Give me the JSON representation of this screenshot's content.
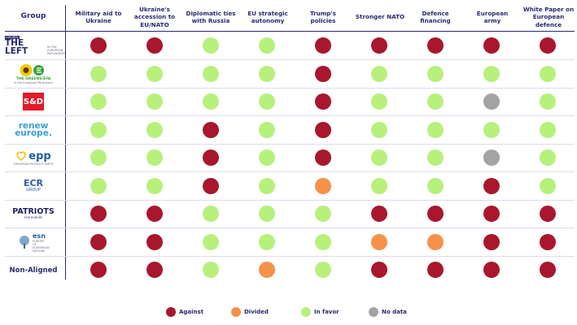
{
  "header": {
    "group_label": "Group",
    "columns": [
      "Military aid to Ukraine",
      "Ukraine's accession to EU/NATO",
      "Diplomatic ties with Russia",
      "EU strategic autonomy",
      "Trump's policies",
      "Stronger NATO",
      "Defence financing",
      "European army",
      "White Paper on European defence"
    ]
  },
  "groups": [
    {
      "id": "the-left",
      "logo_text": "THE LEFT",
      "logo_subtext": "IN THE EUROPEAN PARLIAMENT",
      "logo_tag": "GUE/NGL"
    },
    {
      "id": "greens-efa",
      "logo_text": "THE GREENS/EFA",
      "logo_subtext": "in the European Parliament"
    },
    {
      "id": "s-and-d",
      "logo_text": "S&D"
    },
    {
      "id": "renew",
      "logo_text": "renew europe."
    },
    {
      "id": "epp",
      "logo_text": "epp",
      "logo_subtext": "EUROPEAN PEOPLE'S PARTY"
    },
    {
      "id": "ecr",
      "logo_text": "ECR",
      "logo_subtext": "GROUP"
    },
    {
      "id": "patriots",
      "logo_text": "PATRIOTS",
      "logo_subtext": "FOR EUROPE"
    },
    {
      "id": "esn",
      "logo_text": "esn",
      "logo_subtext": "EUROPE OF SOVEREIGN NATIONS"
    },
    {
      "id": "non-aligned",
      "logo_text": "Non-Aligned"
    }
  ],
  "legend": [
    {
      "key": "against",
      "label": "Against",
      "color": "#a8172d"
    },
    {
      "key": "divided",
      "label": "Divided",
      "color": "#f6914a"
    },
    {
      "key": "infavor",
      "label": "In favor",
      "color": "#b8f07c"
    },
    {
      "key": "nodata",
      "label": "No data",
      "color": "#a3a3a3"
    }
  ],
  "chart_data": {
    "type": "table",
    "columns": [
      "Military aid to Ukraine",
      "Ukraine's accession to EU/NATO",
      "Diplomatic ties with Russia",
      "EU strategic autonomy",
      "Trump's policies",
      "Stronger NATO",
      "Defence financing",
      "European army",
      "White Paper on European defence"
    ],
    "rows": [
      {
        "group": "The Left",
        "values": [
          "against",
          "against",
          "infavor",
          "infavor",
          "against",
          "against",
          "against",
          "against",
          "against"
        ]
      },
      {
        "group": "Greens/EFA",
        "values": [
          "infavor",
          "infavor",
          "infavor",
          "infavor",
          "against",
          "infavor",
          "infavor",
          "infavor",
          "infavor"
        ]
      },
      {
        "group": "S&D",
        "values": [
          "infavor",
          "infavor",
          "infavor",
          "infavor",
          "against",
          "infavor",
          "infavor",
          "nodata",
          "infavor"
        ]
      },
      {
        "group": "Renew Europe",
        "values": [
          "infavor",
          "infavor",
          "against",
          "infavor",
          "against",
          "infavor",
          "infavor",
          "infavor",
          "infavor"
        ]
      },
      {
        "group": "EPP",
        "values": [
          "infavor",
          "infavor",
          "against",
          "infavor",
          "against",
          "infavor",
          "infavor",
          "nodata",
          "infavor"
        ]
      },
      {
        "group": "ECR",
        "values": [
          "infavor",
          "infavor",
          "against",
          "infavor",
          "divided",
          "infavor",
          "infavor",
          "against",
          "infavor"
        ]
      },
      {
        "group": "Patriots",
        "values": [
          "against",
          "against",
          "infavor",
          "infavor",
          "infavor",
          "against",
          "against",
          "against",
          "against"
        ]
      },
      {
        "group": "ESN",
        "values": [
          "against",
          "against",
          "infavor",
          "infavor",
          "infavor",
          "divided",
          "divided",
          "against",
          "against"
        ]
      },
      {
        "group": "Non-Aligned",
        "values": [
          "against",
          "against",
          "infavor",
          "divided",
          "infavor",
          "against",
          "against",
          "against",
          "against"
        ]
      }
    ],
    "colors": {
      "against": "#a8172d",
      "divided": "#f6914a",
      "infavor": "#b8f07c",
      "nodata": "#a3a3a3"
    }
  }
}
